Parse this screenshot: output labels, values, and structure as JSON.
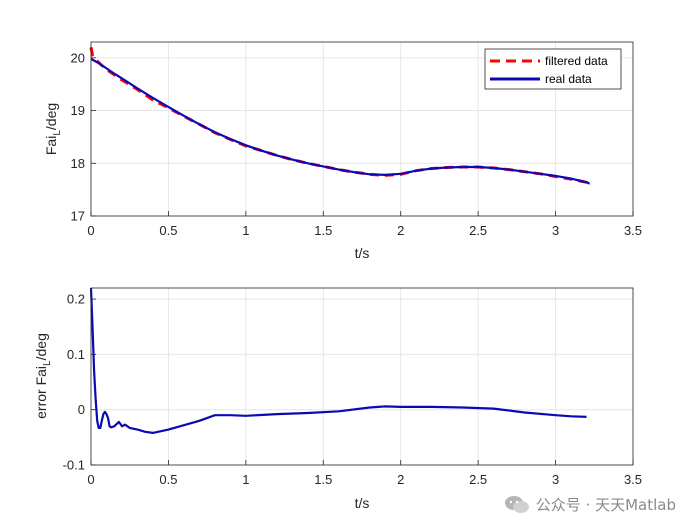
{
  "chart_data": [
    {
      "type": "line",
      "xlabel": "t/s",
      "ylabel_main": "Fai",
      "ylabel_sub": "L",
      "ylabel_tail": "/deg",
      "xlim": [
        0,
        3.5
      ],
      "ylim": [
        17,
        20.3
      ],
      "xticks": [
        0,
        0.5,
        1,
        1.5,
        2,
        2.5,
        3,
        3.5
      ],
      "xtick_labels": [
        "0",
        "0.5",
        "1",
        "1.5",
        "2",
        "2.5",
        "3",
        "3.5"
      ],
      "yticks": [
        17,
        18,
        19,
        20
      ],
      "ytick_labels": [
        "17",
        "18",
        "19",
        "20"
      ],
      "grid": true,
      "legend_position": "top-right",
      "series": [
        {
          "name": "filtered data",
          "color": "#ff0000",
          "style": "dashed",
          "x": [
            0,
            0.01,
            0.03,
            0.06,
            0.1,
            0.15,
            0.2,
            0.3,
            0.4,
            0.5,
            0.6,
            0.7,
            0.8,
            0.9,
            1.0,
            1.1,
            1.2,
            1.3,
            1.4,
            1.5,
            1.6,
            1.7,
            1.8,
            1.9,
            2.0,
            2.1,
            2.2,
            2.3,
            2.4,
            2.5,
            2.6,
            2.7,
            2.8,
            2.9,
            3.0,
            3.1,
            3.2,
            3.22
          ],
          "y": [
            20.2,
            20.05,
            19.97,
            19.88,
            19.78,
            19.68,
            19.58,
            19.4,
            19.2,
            19.05,
            18.89,
            18.74,
            18.58,
            18.45,
            18.33,
            18.24,
            18.15,
            18.07,
            18.0,
            17.94,
            17.88,
            17.83,
            17.79,
            17.77,
            17.79,
            17.86,
            17.9,
            17.92,
            17.93,
            17.93,
            17.91,
            17.88,
            17.84,
            17.8,
            17.75,
            17.7,
            17.64,
            17.6
          ]
        },
        {
          "name": "real data",
          "color": "#0a0ab4",
          "style": "solid",
          "x": [
            0,
            0.05,
            0.1,
            0.15,
            0.2,
            0.3,
            0.4,
            0.5,
            0.6,
            0.7,
            0.8,
            0.9,
            1.0,
            1.1,
            1.2,
            1.3,
            1.4,
            1.5,
            1.6,
            1.7,
            1.8,
            1.9,
            2.0,
            2.1,
            2.2,
            2.3,
            2.4,
            2.5,
            2.6,
            2.7,
            2.8,
            2.9,
            3.0,
            3.1,
            3.2,
            3.22
          ],
          "y": [
            19.98,
            19.9,
            19.8,
            19.7,
            19.61,
            19.42,
            19.24,
            19.07,
            18.9,
            18.74,
            18.59,
            18.46,
            18.34,
            18.24,
            18.15,
            18.07,
            18.0,
            17.94,
            17.88,
            17.83,
            17.79,
            17.78,
            17.8,
            17.86,
            17.9,
            17.92,
            17.93,
            17.93,
            17.91,
            17.88,
            17.84,
            17.8,
            17.76,
            17.71,
            17.64,
            17.61
          ]
        }
      ]
    },
    {
      "type": "line",
      "xlabel": "t/s",
      "ylabel_main": "error Fai",
      "ylabel_sub": "L",
      "ylabel_tail": "/deg",
      "xlim": [
        0,
        3.5
      ],
      "ylim": [
        -0.1,
        0.22
      ],
      "xticks": [
        0,
        0.5,
        1,
        1.5,
        2,
        2.5,
        3,
        3.5
      ],
      "xtick_labels": [
        "0",
        "0.5",
        "1",
        "1.5",
        "2",
        "2.5",
        "3",
        "3.5"
      ],
      "yticks": [
        -0.1,
        0,
        0.1,
        0.2
      ],
      "ytick_labels": [
        "-0.1",
        "0",
        "0.1",
        "0.2"
      ],
      "grid": true,
      "series": [
        {
          "color": "#0a0ab4",
          "style": "solid",
          "x": [
            0,
            0.01,
            0.02,
            0.03,
            0.04,
            0.05,
            0.06,
            0.07,
            0.08,
            0.09,
            0.1,
            0.11,
            0.12,
            0.13,
            0.15,
            0.18,
            0.2,
            0.22,
            0.25,
            0.3,
            0.35,
            0.4,
            0.5,
            0.6,
            0.7,
            0.8,
            0.9,
            1.0,
            1.2,
            1.4,
            1.6,
            1.8,
            1.9,
            2.0,
            2.2,
            2.4,
            2.6,
            2.8,
            3.0,
            3.1,
            3.2
          ],
          "y": [
            0.22,
            0.15,
            0.07,
            0.02,
            -0.02,
            -0.033,
            -0.033,
            -0.02,
            -0.008,
            -0.004,
            -0.008,
            -0.015,
            -0.03,
            -0.032,
            -0.03,
            -0.022,
            -0.03,
            -0.027,
            -0.033,
            -0.036,
            -0.04,
            -0.042,
            -0.036,
            -0.028,
            -0.02,
            -0.01,
            -0.01,
            -0.011,
            -0.008,
            -0.006,
            -0.003,
            0.004,
            0.006,
            0.005,
            0.005,
            0.004,
            0.002,
            -0.005,
            -0.01,
            -0.012,
            -0.013
          ]
        }
      ]
    }
  ],
  "watermark_text": "公众号 · 天天Matlab"
}
